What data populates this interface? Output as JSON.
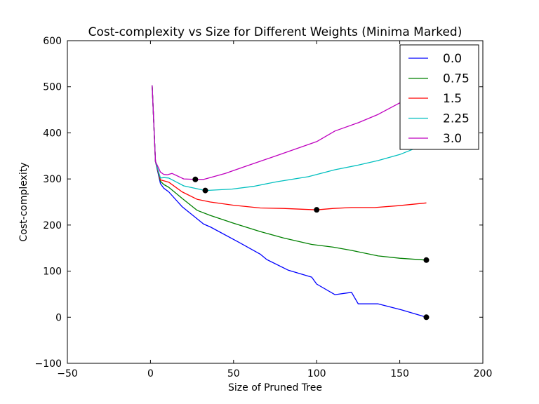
{
  "chart_data": {
    "type": "line",
    "title": "Cost-complexity vs Size for Different Weights (Minima Marked)",
    "xlabel": "Size of Pruned Tree",
    "ylabel": "Cost-complexity",
    "xlim": [
      -50,
      200
    ],
    "ylim": [
      -100,
      600
    ],
    "xticks": [
      -50,
      0,
      50,
      100,
      150,
      200
    ],
    "yticks": [
      -100,
      0,
      100,
      200,
      300,
      400,
      500,
      600
    ],
    "xtick_labels": [
      "−50",
      "0",
      "50",
      "100",
      "150",
      "200"
    ],
    "ytick_labels": [
      "−100",
      "0",
      "100",
      "200",
      "300",
      "400",
      "500",
      "600"
    ],
    "grid": false,
    "legend_position": "top-right",
    "series": [
      {
        "name": "0.0",
        "color": "#0000ff",
        "x": [
          1,
          3,
          6,
          8,
          11,
          19,
          32,
          36,
          53,
          66,
          70,
          83,
          97,
          100,
          111,
          121,
          125,
          137,
          151,
          166
        ],
        "y": [
          503,
          338,
          290,
          280,
          272,
          240,
          202,
          196,
          163,
          137,
          125,
          102,
          87,
          72,
          49,
          54,
          29,
          29,
          16,
          0
        ],
        "minimum": {
          "x": 166,
          "y": 0
        }
      },
      {
        "name": "0.75",
        "color": "#008000",
        "x": [
          1,
          3,
          6,
          8,
          11,
          19,
          28,
          36,
          50,
          66,
          80,
          97,
          110,
          121,
          137,
          150,
          166
        ],
        "y": [
          503,
          338,
          295,
          288,
          282,
          258,
          232,
          221,
          204,
          186,
          172,
          158,
          152,
          145,
          133,
          128,
          124
        ],
        "minimum": {
          "x": 166,
          "y": 124
        }
      },
      {
        "name": "1.5",
        "color": "#ff0000",
        "x": [
          1,
          3,
          6,
          8,
          11,
          19,
          28,
          36,
          50,
          66,
          80,
          100,
          110,
          121,
          135,
          149,
          166
        ],
        "y": [
          503,
          338,
          298,
          296,
          293,
          272,
          256,
          250,
          243,
          237,
          236,
          233,
          236,
          238,
          238,
          242,
          248
        ],
        "minimum": {
          "x": 100,
          "y": 233
        }
      },
      {
        "name": "2.25",
        "color": "#00bfbf",
        "x": [
          1,
          3,
          6,
          8,
          11,
          20,
          33,
          49,
          62,
          76,
          95,
          111,
          125,
          137,
          150,
          166
        ],
        "y": [
          503,
          338,
          302,
          303,
          302,
          285,
          275,
          278,
          284,
          294,
          305,
          320,
          330,
          340,
          353,
          376
        ],
        "minimum": {
          "x": 33,
          "y": 275
        }
      },
      {
        "name": "3.0",
        "color": "#bf00bf",
        "x": [
          1,
          3,
          6,
          8,
          10,
          13,
          20,
          27,
          32,
          45,
          56,
          77,
          100,
          111,
          125,
          137,
          150,
          166
        ],
        "y": [
          503,
          338,
          315,
          310,
          309,
          312,
          300,
          299,
          299,
          312,
          326,
          352,
          381,
          404,
          422,
          440,
          465,
          490
        ],
        "minimum": {
          "x": 27,
          "y": 299
        }
      }
    ]
  }
}
